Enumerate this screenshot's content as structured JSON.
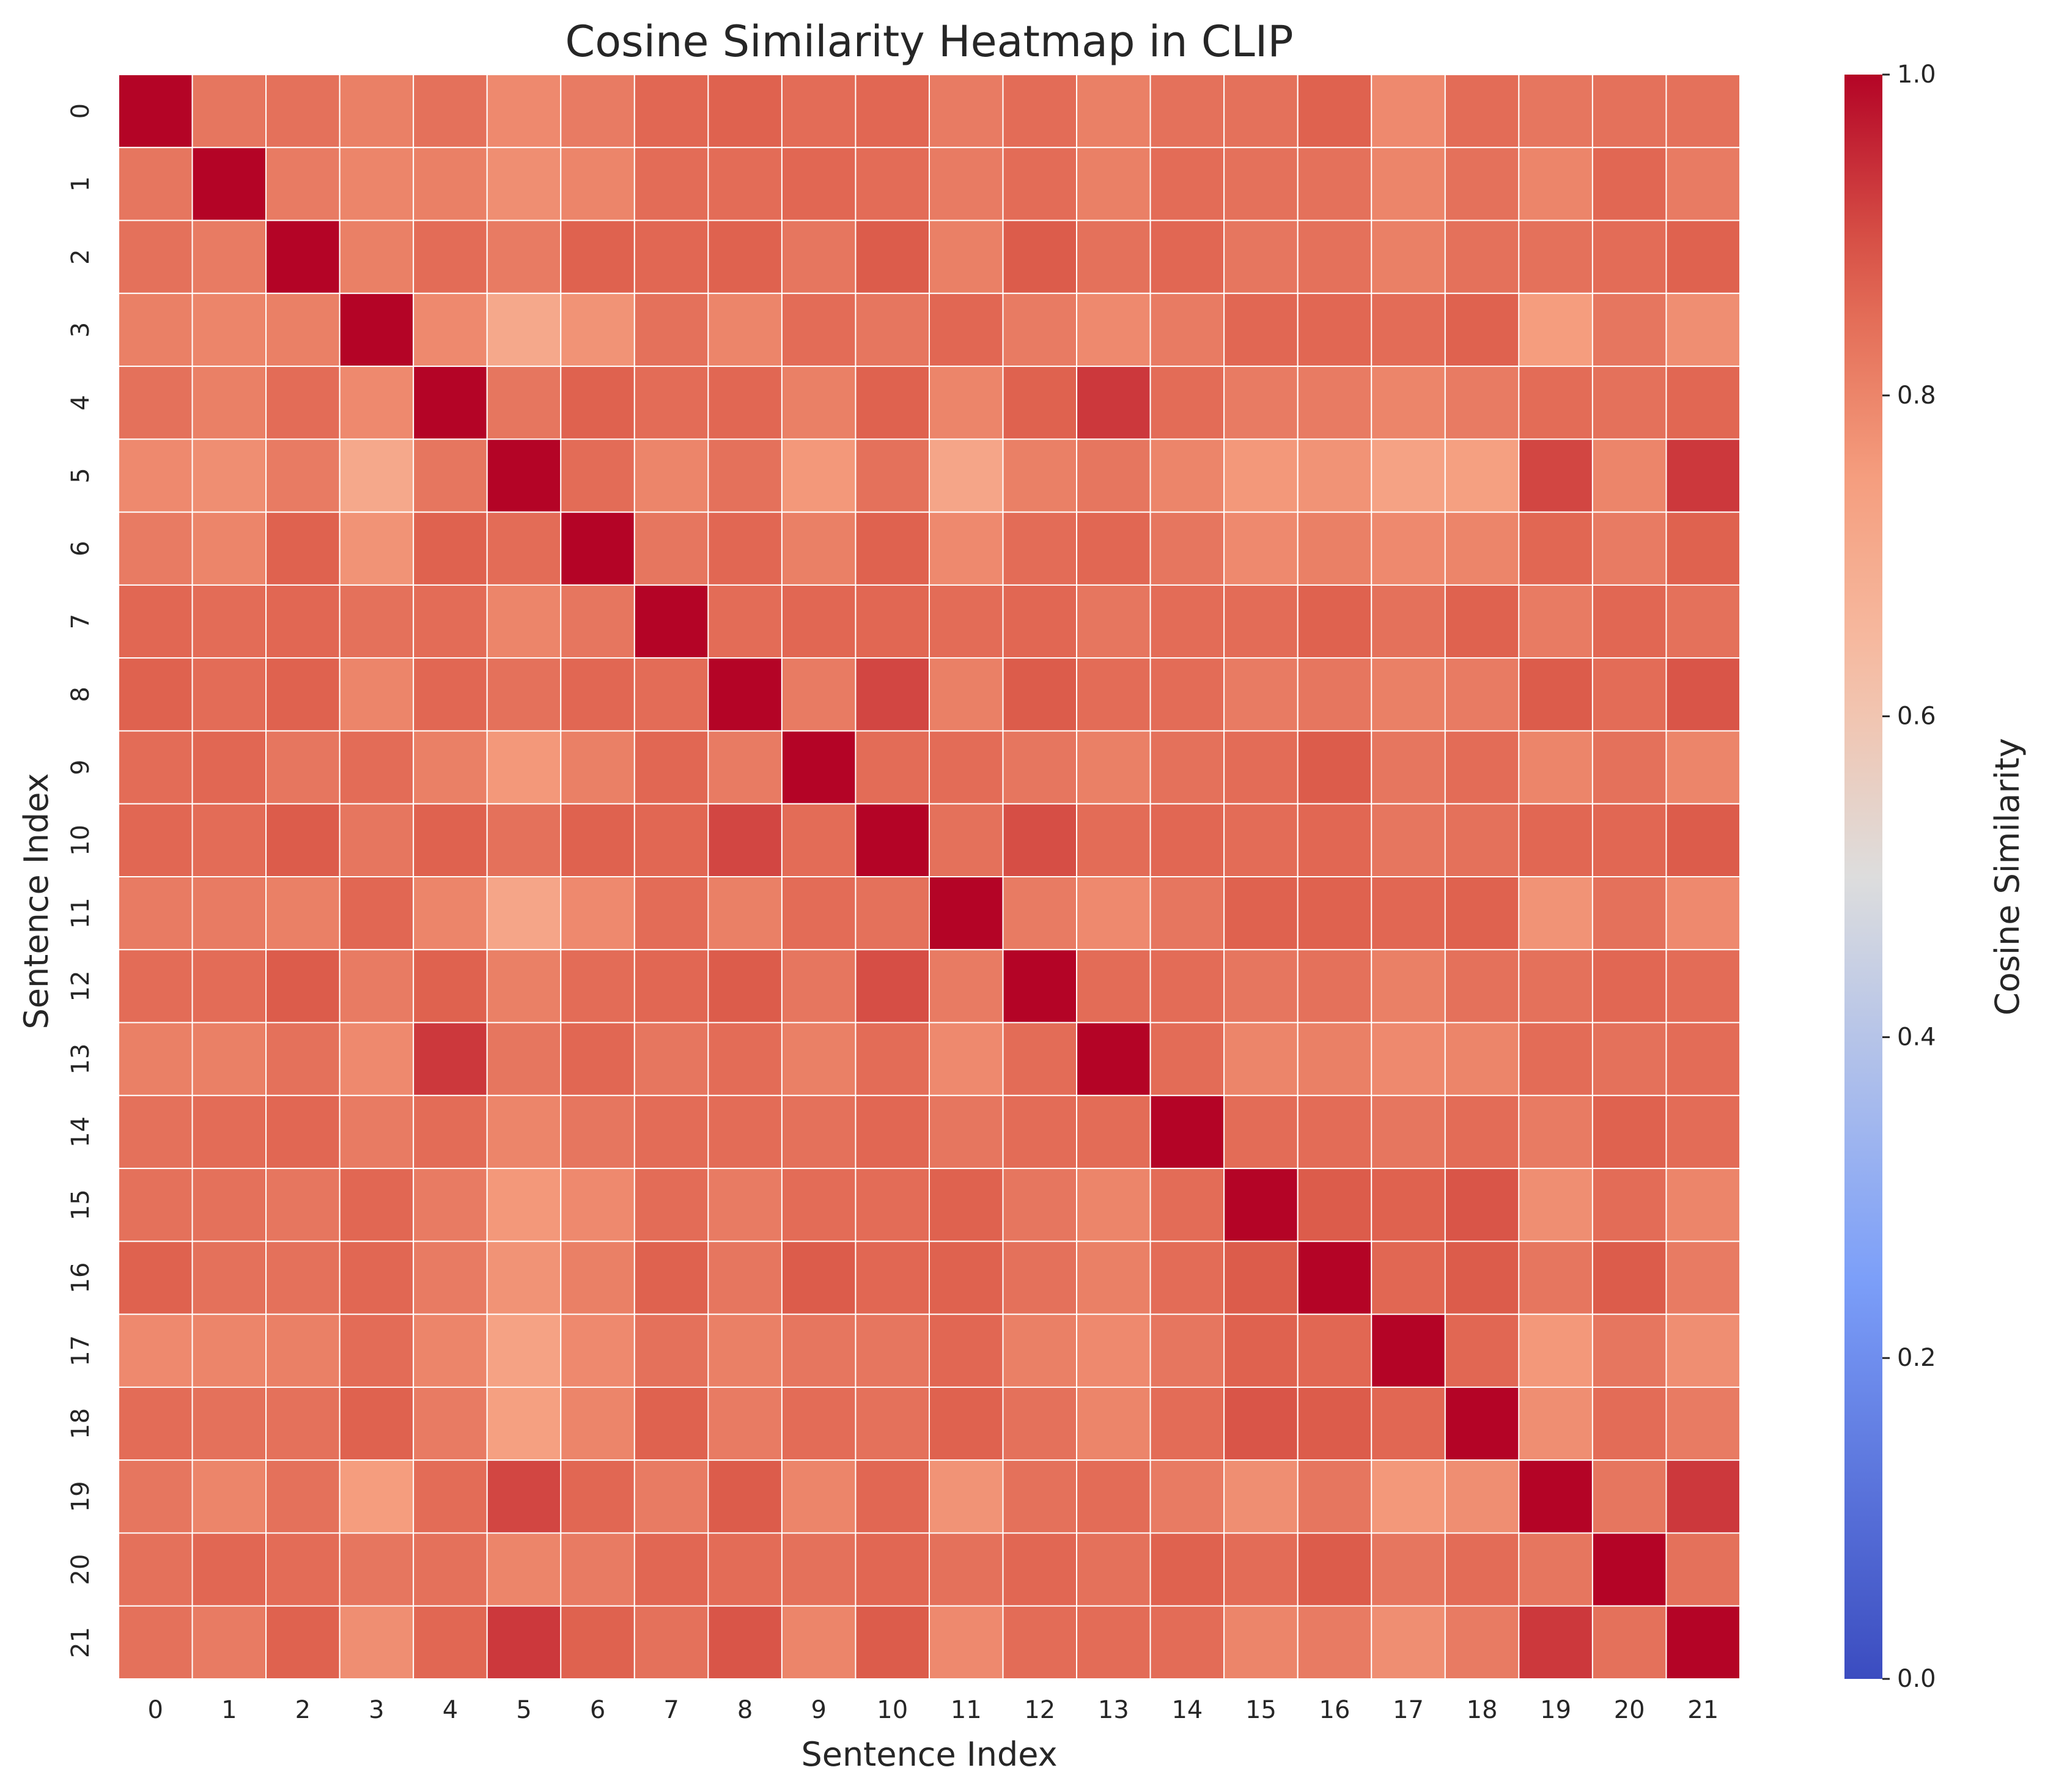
{
  "chart_data": {
    "type": "heatmap",
    "title": "Cosine Similarity Heatmap in CLIP",
    "xlabel": "Sentence Index",
    "ylabel": "Sentence Index",
    "x_categories": [
      "0",
      "1",
      "2",
      "3",
      "4",
      "5",
      "6",
      "7",
      "8",
      "9",
      "10",
      "11",
      "12",
      "13",
      "14",
      "15",
      "16",
      "17",
      "18",
      "19",
      "20",
      "21"
    ],
    "y_categories": [
      "0",
      "1",
      "2",
      "3",
      "4",
      "5",
      "6",
      "7",
      "8",
      "9",
      "10",
      "11",
      "12",
      "13",
      "14",
      "15",
      "16",
      "17",
      "18",
      "19",
      "20",
      "21"
    ],
    "colormap": "coolwarm",
    "vmin": 0.0,
    "vmax": 1.0,
    "colorbar": {
      "label": "Cosine Similarity",
      "ticks": [
        "0.0",
        "0.2",
        "0.4",
        "0.6",
        "0.8",
        "1.0"
      ]
    },
    "values": [
      [
        1.0,
        0.83,
        0.84,
        0.81,
        0.84,
        0.79,
        0.82,
        0.86,
        0.87,
        0.85,
        0.86,
        0.82,
        0.85,
        0.81,
        0.84,
        0.84,
        0.87,
        0.79,
        0.85,
        0.83,
        0.84,
        0.84
      ],
      [
        0.83,
        1.0,
        0.82,
        0.8,
        0.81,
        0.78,
        0.8,
        0.85,
        0.85,
        0.86,
        0.85,
        0.82,
        0.85,
        0.81,
        0.85,
        0.84,
        0.84,
        0.8,
        0.84,
        0.8,
        0.86,
        0.82
      ],
      [
        0.84,
        0.82,
        1.0,
        0.81,
        0.85,
        0.82,
        0.87,
        0.86,
        0.87,
        0.83,
        0.88,
        0.81,
        0.88,
        0.84,
        0.86,
        0.83,
        0.84,
        0.81,
        0.84,
        0.84,
        0.85,
        0.87
      ],
      [
        0.81,
        0.8,
        0.81,
        1.0,
        0.79,
        0.71,
        0.77,
        0.84,
        0.8,
        0.85,
        0.83,
        0.86,
        0.82,
        0.79,
        0.82,
        0.86,
        0.86,
        0.85,
        0.87,
        0.75,
        0.83,
        0.78
      ],
      [
        0.84,
        0.81,
        0.85,
        0.79,
        1.0,
        0.83,
        0.87,
        0.85,
        0.86,
        0.81,
        0.87,
        0.8,
        0.87,
        0.93,
        0.85,
        0.82,
        0.82,
        0.8,
        0.82,
        0.85,
        0.84,
        0.86
      ],
      [
        0.79,
        0.78,
        0.82,
        0.71,
        0.83,
        1.0,
        0.85,
        0.8,
        0.84,
        0.76,
        0.84,
        0.72,
        0.81,
        0.83,
        0.8,
        0.76,
        0.77,
        0.73,
        0.74,
        0.91,
        0.8,
        0.93
      ],
      [
        0.82,
        0.8,
        0.87,
        0.77,
        0.87,
        0.85,
        1.0,
        0.83,
        0.86,
        0.81,
        0.87,
        0.79,
        0.85,
        0.86,
        0.83,
        0.79,
        0.81,
        0.79,
        0.8,
        0.86,
        0.82,
        0.87
      ],
      [
        0.86,
        0.85,
        0.86,
        0.84,
        0.85,
        0.8,
        0.83,
        1.0,
        0.85,
        0.86,
        0.86,
        0.85,
        0.86,
        0.83,
        0.85,
        0.85,
        0.87,
        0.84,
        0.87,
        0.82,
        0.86,
        0.84
      ],
      [
        0.87,
        0.85,
        0.87,
        0.8,
        0.86,
        0.84,
        0.86,
        0.85,
        1.0,
        0.82,
        0.91,
        0.81,
        0.88,
        0.85,
        0.85,
        0.82,
        0.83,
        0.81,
        0.82,
        0.88,
        0.85,
        0.89
      ],
      [
        0.85,
        0.86,
        0.83,
        0.85,
        0.81,
        0.76,
        0.81,
        0.86,
        0.82,
        1.0,
        0.85,
        0.85,
        0.83,
        0.81,
        0.84,
        0.85,
        0.88,
        0.83,
        0.85,
        0.8,
        0.84,
        0.8
      ],
      [
        0.86,
        0.85,
        0.88,
        0.83,
        0.87,
        0.84,
        0.87,
        0.86,
        0.91,
        0.85,
        1.0,
        0.84,
        0.9,
        0.85,
        0.86,
        0.85,
        0.86,
        0.83,
        0.84,
        0.86,
        0.86,
        0.88
      ],
      [
        0.82,
        0.82,
        0.81,
        0.86,
        0.8,
        0.72,
        0.79,
        0.85,
        0.81,
        0.85,
        0.84,
        1.0,
        0.82,
        0.79,
        0.83,
        0.87,
        0.87,
        0.86,
        0.87,
        0.77,
        0.84,
        0.79
      ],
      [
        0.85,
        0.85,
        0.88,
        0.82,
        0.87,
        0.81,
        0.85,
        0.86,
        0.88,
        0.83,
        0.9,
        0.82,
        1.0,
        0.85,
        0.85,
        0.83,
        0.84,
        0.81,
        0.84,
        0.84,
        0.86,
        0.85
      ],
      [
        0.81,
        0.81,
        0.84,
        0.79,
        0.93,
        0.83,
        0.86,
        0.83,
        0.85,
        0.81,
        0.85,
        0.79,
        0.85,
        1.0,
        0.85,
        0.8,
        0.81,
        0.79,
        0.8,
        0.85,
        0.84,
        0.85
      ],
      [
        0.84,
        0.85,
        0.86,
        0.82,
        0.85,
        0.8,
        0.83,
        0.85,
        0.85,
        0.84,
        0.86,
        0.83,
        0.85,
        0.85,
        1.0,
        0.85,
        0.85,
        0.83,
        0.85,
        0.82,
        0.87,
        0.85
      ],
      [
        0.84,
        0.84,
        0.83,
        0.86,
        0.82,
        0.76,
        0.79,
        0.85,
        0.82,
        0.85,
        0.85,
        0.87,
        0.83,
        0.8,
        0.85,
        1.0,
        0.88,
        0.87,
        0.89,
        0.78,
        0.85,
        0.8
      ],
      [
        0.87,
        0.84,
        0.84,
        0.86,
        0.82,
        0.77,
        0.81,
        0.87,
        0.83,
        0.88,
        0.86,
        0.87,
        0.84,
        0.81,
        0.85,
        0.88,
        1.0,
        0.86,
        0.88,
        0.83,
        0.88,
        0.82
      ],
      [
        0.79,
        0.8,
        0.81,
        0.85,
        0.8,
        0.73,
        0.79,
        0.84,
        0.81,
        0.83,
        0.83,
        0.86,
        0.81,
        0.79,
        0.83,
        0.87,
        0.86,
        1.0,
        0.86,
        0.76,
        0.83,
        0.78
      ],
      [
        0.85,
        0.84,
        0.84,
        0.87,
        0.82,
        0.74,
        0.8,
        0.87,
        0.82,
        0.85,
        0.84,
        0.87,
        0.84,
        0.8,
        0.85,
        0.89,
        0.88,
        0.86,
        1.0,
        0.78,
        0.85,
        0.82
      ],
      [
        0.83,
        0.8,
        0.84,
        0.75,
        0.85,
        0.91,
        0.86,
        0.82,
        0.88,
        0.8,
        0.86,
        0.77,
        0.84,
        0.85,
        0.82,
        0.78,
        0.83,
        0.76,
        0.78,
        1.0,
        0.83,
        0.93
      ],
      [
        0.84,
        0.86,
        0.85,
        0.83,
        0.84,
        0.8,
        0.82,
        0.86,
        0.85,
        0.84,
        0.86,
        0.84,
        0.86,
        0.84,
        0.87,
        0.85,
        0.88,
        0.83,
        0.85,
        0.83,
        1.0,
        0.84
      ],
      [
        0.84,
        0.82,
        0.87,
        0.78,
        0.86,
        0.93,
        0.87,
        0.84,
        0.89,
        0.8,
        0.88,
        0.79,
        0.85,
        0.85,
        0.85,
        0.8,
        0.82,
        0.78,
        0.82,
        0.93,
        0.84,
        1.0
      ]
    ]
  }
}
